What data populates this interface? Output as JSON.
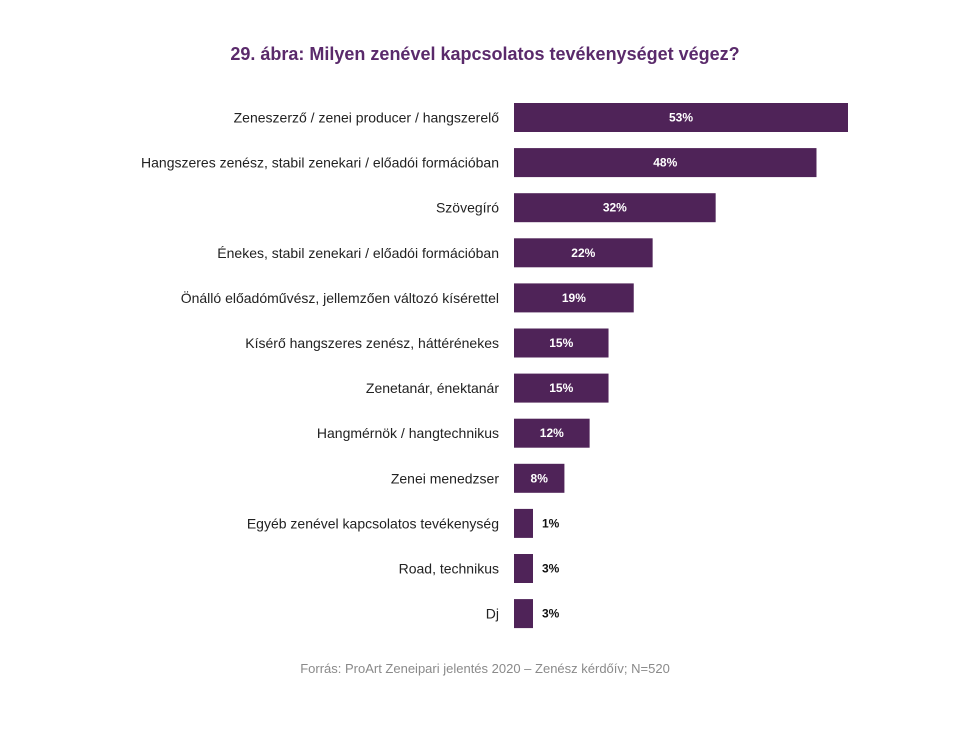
{
  "chart_data": {
    "type": "bar",
    "orientation": "horizontal",
    "title": "29. ábra: Milyen zenével kapcsolatos tevékenységet végez?",
    "source": "Forrás: ProArt Zeneipari jelentés 2020 – Zenész kérdőív; N=520",
    "unit": "%",
    "bar_color": "#4f2358",
    "title_color": "#5a2a6b",
    "categories": [
      "Zeneszerző / zenei producer / hangszerelő",
      "Hangszeres zenész, stabil zenekari / előadói formációban",
      "Szövegíró",
      "Énekes, stabil zenekari / előadói formációban",
      "Önálló előadóművész, jellemzően változó kísérettel",
      "Kísérő hangszeres zenész, háttérénekes",
      "Zenetanár, énektanár",
      "Hangmérnök / hangtechnikus",
      "Zenei menedzser",
      "Egyéb zenével kapcsolatos tevékenység",
      "Road, technikus",
      "Dj"
    ],
    "values": [
      53,
      48,
      32,
      22,
      19,
      15,
      15,
      12,
      8,
      1,
      3,
      3
    ],
    "labels": [
      "53%",
      "48%",
      "32%",
      "22%",
      "19%",
      "15%",
      "15%",
      "12%",
      "8%",
      "1%",
      "3%",
      "3%"
    ],
    "xlim": [
      0,
      53
    ]
  }
}
